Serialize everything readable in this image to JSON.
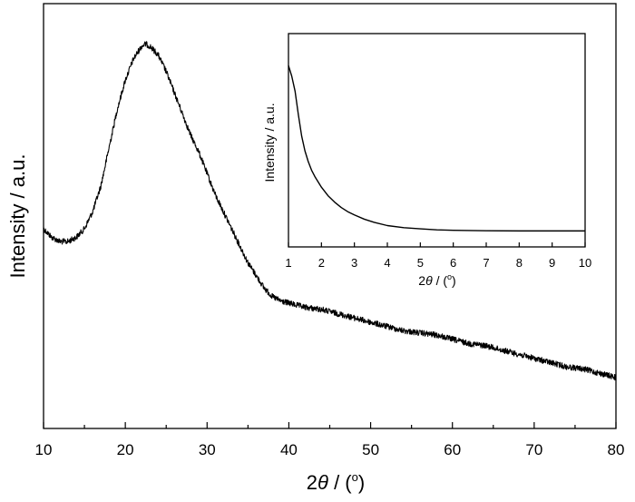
{
  "chart_data": [
    {
      "type": "line",
      "title": "",
      "xlabel_prefix": "2",
      "xlabel_theta": "θ",
      "xlabel_suffix": " / (",
      "xlabel_degree": "o",
      "xlabel_close": ")",
      "ylabel": "Intensity / a.u.",
      "xlim": [
        10,
        80
      ],
      "ylim": [
        0,
        1
      ],
      "x_ticks": [
        10,
        20,
        30,
        40,
        50,
        60,
        70,
        80
      ],
      "y_ticks_labeled": false,
      "grid": false,
      "series": [
        {
          "x": [
            10,
            11,
            12,
            13,
            14,
            15,
            16,
            17,
            18,
            19,
            20,
            21,
            22,
            22.5,
            23,
            24,
            25,
            26,
            27,
            28,
            29,
            30,
            31,
            32,
            33,
            34,
            35,
            36,
            37,
            38,
            39,
            40,
            42,
            44,
            46,
            48,
            50,
            52,
            54,
            56,
            58,
            60,
            62,
            64,
            66,
            68,
            70,
            72,
            74,
            76,
            78,
            80
          ],
          "y": [
            0.47,
            0.45,
            0.44,
            0.44,
            0.45,
            0.47,
            0.51,
            0.57,
            0.66,
            0.75,
            0.82,
            0.87,
            0.9,
            0.905,
            0.9,
            0.88,
            0.84,
            0.79,
            0.74,
            0.69,
            0.65,
            0.6,
            0.55,
            0.51,
            0.47,
            0.43,
            0.39,
            0.36,
            0.33,
            0.31,
            0.3,
            0.295,
            0.285,
            0.28,
            0.27,
            0.26,
            0.25,
            0.24,
            0.23,
            0.225,
            0.22,
            0.21,
            0.2,
            0.195,
            0.185,
            0.175,
            0.165,
            0.155,
            0.145,
            0.14,
            0.13,
            0.12
          ]
        }
      ]
    },
    {
      "type": "line",
      "title": "",
      "xlabel_prefix": "2",
      "xlabel_theta": "θ",
      "xlabel_suffix": " / (",
      "xlabel_degree": "o",
      "xlabel_close": ")",
      "ylabel": "Intensity / a.u.",
      "xlim": [
        1,
        10
      ],
      "ylim": [
        0,
        1
      ],
      "x_ticks": [
        1,
        2,
        3,
        4,
        5,
        6,
        7,
        8,
        9,
        10
      ],
      "y_ticks_labeled": false,
      "grid": false,
      "series": [
        {
          "x": [
            1,
            1.1,
            1.2,
            1.3,
            1.4,
            1.5,
            1.6,
            1.7,
            1.8,
            2,
            2.2,
            2.4,
            2.6,
            2.8,
            3,
            3.3,
            3.6,
            4,
            4.5,
            5,
            5.5,
            6,
            7,
            8,
            9,
            10
          ],
          "y": [
            0.85,
            0.8,
            0.73,
            0.62,
            0.52,
            0.45,
            0.4,
            0.36,
            0.33,
            0.28,
            0.24,
            0.21,
            0.185,
            0.165,
            0.15,
            0.13,
            0.115,
            0.1,
            0.09,
            0.085,
            0.08,
            0.078,
            0.076,
            0.075,
            0.075,
            0.075
          ]
        }
      ]
    }
  ]
}
